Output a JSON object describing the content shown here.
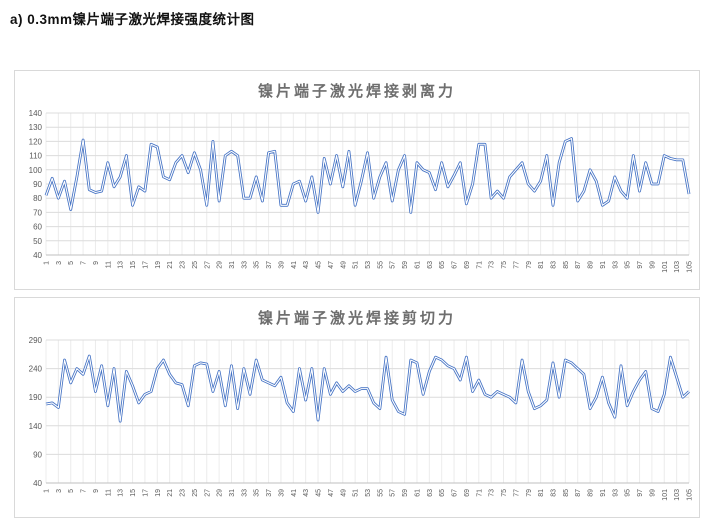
{
  "page": {
    "heading": "a) 0.3mm镍片端子激光焊接强度统计图"
  },
  "colors": {
    "line": "#4472C4",
    "line_core": "#ffffff",
    "grid_h": "#dcdcdc",
    "grid_v": "#ececec",
    "axis_text": "#595959",
    "chart_title": "#6e6e6e",
    "box_border": "#d9d9d9",
    "axis_line": "#bfbfbf"
  },
  "chart_data": [
    {
      "type": "line",
      "title": "镍片端子激光焊接剥离力",
      "xlabel": "",
      "ylabel": "",
      "ylim": [
        40,
        140
      ],
      "y_step": 10,
      "x_start": 1,
      "x_tick_step": 2,
      "grid": true,
      "legend": "none",
      "values": [
        82,
        94,
        80,
        92,
        72,
        95,
        121,
        86,
        84,
        85,
        105,
        88,
        95,
        110,
        75,
        88,
        85,
        118,
        116,
        95,
        93,
        105,
        110,
        98,
        112,
        100,
        75,
        120,
        78,
        110,
        113,
        110,
        80,
        80,
        95,
        78,
        112,
        113,
        75,
        75,
        90,
        92,
        78,
        95,
        70,
        108,
        90,
        110,
        88,
        113,
        75,
        92,
        112,
        80,
        95,
        105,
        78,
        100,
        110,
        70,
        105,
        100,
        98,
        86,
        105,
        88,
        96,
        105,
        76,
        90,
        118,
        118,
        80,
        85,
        80,
        95,
        100,
        105,
        90,
        85,
        92,
        110,
        75,
        105,
        120,
        122,
        78,
        85,
        100,
        92,
        75,
        78,
        95,
        85,
        80,
        110,
        85,
        105,
        90,
        90,
        110,
        108,
        107,
        107,
        83
      ]
    },
    {
      "type": "line",
      "title": "镍片端子激光焊接剪切力",
      "xlabel": "",
      "ylabel": "",
      "ylim": [
        40,
        290
      ],
      "y_step": 50,
      "x_start": 1,
      "x_tick_step": 2,
      "grid": true,
      "legend": "none",
      "values": [
        178,
        180,
        172,
        255,
        215,
        240,
        230,
        262,
        200,
        245,
        175,
        240,
        148,
        235,
        210,
        180,
        195,
        200,
        240,
        255,
        230,
        215,
        212,
        175,
        245,
        250,
        248,
        200,
        235,
        175,
        245,
        170,
        240,
        195,
        255,
        220,
        215,
        210,
        225,
        180,
        165,
        240,
        185,
        240,
        150,
        240,
        195,
        215,
        200,
        210,
        200,
        205,
        205,
        180,
        170,
        260,
        185,
        165,
        160,
        255,
        250,
        195,
        235,
        260,
        255,
        245,
        240,
        220,
        260,
        200,
        220,
        195,
        190,
        200,
        195,
        190,
        180,
        255,
        200,
        170,
        175,
        185,
        250,
        190,
        255,
        250,
        240,
        230,
        170,
        190,
        225,
        180,
        155,
        245,
        175,
        200,
        220,
        235,
        170,
        165,
        195,
        260,
        225,
        190,
        200
      ]
    }
  ]
}
